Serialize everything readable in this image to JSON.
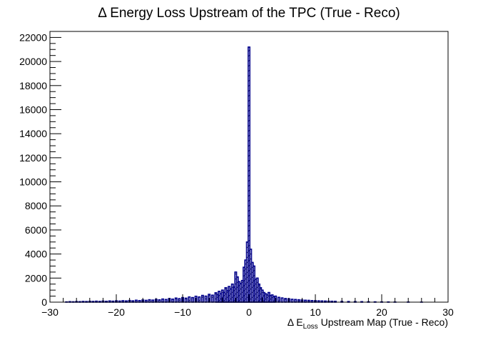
{
  "chart_data": {
    "type": "bar",
    "title": "Δ Energy Loss Upstream of the TPC (True - Reco)",
    "xlabel": {
      "prefix": "Δ E",
      "subscript": "Loss",
      "suffix": " Upstream Map (True - Reco)"
    },
    "ylabel": "",
    "xlim": [
      -30,
      30
    ],
    "ylim": [
      0,
      22500
    ],
    "x_ticks": [
      -30,
      -20,
      -10,
      0,
      10,
      20,
      30
    ],
    "y_ticks": [
      0,
      2000,
      4000,
      6000,
      8000,
      10000,
      12000,
      14000,
      16000,
      18000,
      20000,
      22000
    ],
    "bin_width": 0.25,
    "series_color": "#00008b",
    "fill_style": "hatched",
    "bins": [
      {
        "x": -27.5,
        "y": 20
      },
      {
        "x": -27.0,
        "y": 40
      },
      {
        "x": -26.5,
        "y": 30
      },
      {
        "x": -26.0,
        "y": 50
      },
      {
        "x": -25.5,
        "y": 40
      },
      {
        "x": -25.0,
        "y": 60
      },
      {
        "x": -24.5,
        "y": 50
      },
      {
        "x": -24.0,
        "y": 70
      },
      {
        "x": -23.5,
        "y": 60
      },
      {
        "x": -23.0,
        "y": 80
      },
      {
        "x": -22.5,
        "y": 60
      },
      {
        "x": -22.0,
        "y": 90
      },
      {
        "x": -21.5,
        "y": 70
      },
      {
        "x": -21.0,
        "y": 100
      },
      {
        "x": -20.5,
        "y": 80
      },
      {
        "x": -20.0,
        "y": 110
      },
      {
        "x": -19.5,
        "y": 90
      },
      {
        "x": -19.0,
        "y": 120
      },
      {
        "x": -18.5,
        "y": 100
      },
      {
        "x": -18.0,
        "y": 140
      },
      {
        "x": -17.5,
        "y": 110
      },
      {
        "x": -17.0,
        "y": 160
      },
      {
        "x": -16.5,
        "y": 130
      },
      {
        "x": -16.0,
        "y": 180
      },
      {
        "x": -15.5,
        "y": 150
      },
      {
        "x": -15.0,
        "y": 200
      },
      {
        "x": -14.5,
        "y": 170
      },
      {
        "x": -14.0,
        "y": 230
      },
      {
        "x": -13.5,
        "y": 190
      },
      {
        "x": -13.0,
        "y": 260
      },
      {
        "x": -12.5,
        "y": 220
      },
      {
        "x": -12.0,
        "y": 300
      },
      {
        "x": -11.5,
        "y": 250
      },
      {
        "x": -11.0,
        "y": 340
      },
      {
        "x": -10.5,
        "y": 290
      },
      {
        "x": -10.0,
        "y": 380
      },
      {
        "x": -9.5,
        "y": 330
      },
      {
        "x": -9.0,
        "y": 430
      },
      {
        "x": -8.5,
        "y": 380
      },
      {
        "x": -8.0,
        "y": 490
      },
      {
        "x": -7.5,
        "y": 430
      },
      {
        "x": -7.0,
        "y": 560
      },
      {
        "x": -6.5,
        "y": 500
      },
      {
        "x": -6.0,
        "y": 650
      },
      {
        "x": -5.5,
        "y": 580
      },
      {
        "x": -5.0,
        "y": 780
      },
      {
        "x": -4.75,
        "y": 620
      },
      {
        "x": -4.5,
        "y": 900
      },
      {
        "x": -4.25,
        "y": 700
      },
      {
        "x": -4.0,
        "y": 1000
      },
      {
        "x": -3.75,
        "y": 800
      },
      {
        "x": -3.5,
        "y": 1200
      },
      {
        "x": -3.25,
        "y": 950
      },
      {
        "x": -3.0,
        "y": 1300
      },
      {
        "x": -2.75,
        "y": 1100
      },
      {
        "x": -2.5,
        "y": 1500
      },
      {
        "x": -2.25,
        "y": 1250
      },
      {
        "x": -2.0,
        "y": 2500
      },
      {
        "x": -1.75,
        "y": 2100
      },
      {
        "x": -1.5,
        "y": 1700
      },
      {
        "x": -1.25,
        "y": 1550
      },
      {
        "x": -1.0,
        "y": 1800
      },
      {
        "x": -0.75,
        "y": 2900
      },
      {
        "x": -0.5,
        "y": 3500
      },
      {
        "x": -0.25,
        "y": 5000
      },
      {
        "x": 0.0,
        "y": 21200
      },
      {
        "x": 0.25,
        "y": 4400
      },
      {
        "x": 0.5,
        "y": 3300
      },
      {
        "x": 0.75,
        "y": 3000
      },
      {
        "x": 1.0,
        "y": 1900
      },
      {
        "x": 1.25,
        "y": 2000
      },
      {
        "x": 1.5,
        "y": 1500
      },
      {
        "x": 1.75,
        "y": 1200
      },
      {
        "x": 2.0,
        "y": 1000
      },
      {
        "x": 2.25,
        "y": 800
      },
      {
        "x": 2.5,
        "y": 700
      },
      {
        "x": 2.75,
        "y": 600
      },
      {
        "x": 3.0,
        "y": 800
      },
      {
        "x": 3.25,
        "y": 550
      },
      {
        "x": 3.5,
        "y": 600
      },
      {
        "x": 3.75,
        "y": 450
      },
      {
        "x": 4.0,
        "y": 500
      },
      {
        "x": 4.5,
        "y": 400
      },
      {
        "x": 5.0,
        "y": 350
      },
      {
        "x": 5.5,
        "y": 300
      },
      {
        "x": 6.0,
        "y": 280
      },
      {
        "x": 6.5,
        "y": 240
      },
      {
        "x": 7.0,
        "y": 220
      },
      {
        "x": 7.5,
        "y": 200
      },
      {
        "x": 8.0,
        "y": 180
      },
      {
        "x": 8.5,
        "y": 160
      },
      {
        "x": 9.0,
        "y": 150
      },
      {
        "x": 9.5,
        "y": 130
      },
      {
        "x": 10.0,
        "y": 120
      },
      {
        "x": 10.5,
        "y": 110
      },
      {
        "x": 11.0,
        "y": 100
      },
      {
        "x": 11.5,
        "y": 90
      },
      {
        "x": 12.0,
        "y": 80
      },
      {
        "x": 12.5,
        "y": 75
      },
      {
        "x": 13.0,
        "y": 70
      },
      {
        "x": 14.0,
        "y": 60
      },
      {
        "x": 15.0,
        "y": 50
      },
      {
        "x": 16.0,
        "y": 45
      },
      {
        "x": 17.0,
        "y": 40
      },
      {
        "x": 18.0,
        "y": 30
      },
      {
        "x": 19.0,
        "y": 25
      },
      {
        "x": 20.0,
        "y": 20
      },
      {
        "x": 21.0,
        "y": 15
      },
      {
        "x": 22.0,
        "y": 10
      },
      {
        "x": 24.0,
        "y": 10
      },
      {
        "x": 26.0,
        "y": 5
      }
    ]
  }
}
